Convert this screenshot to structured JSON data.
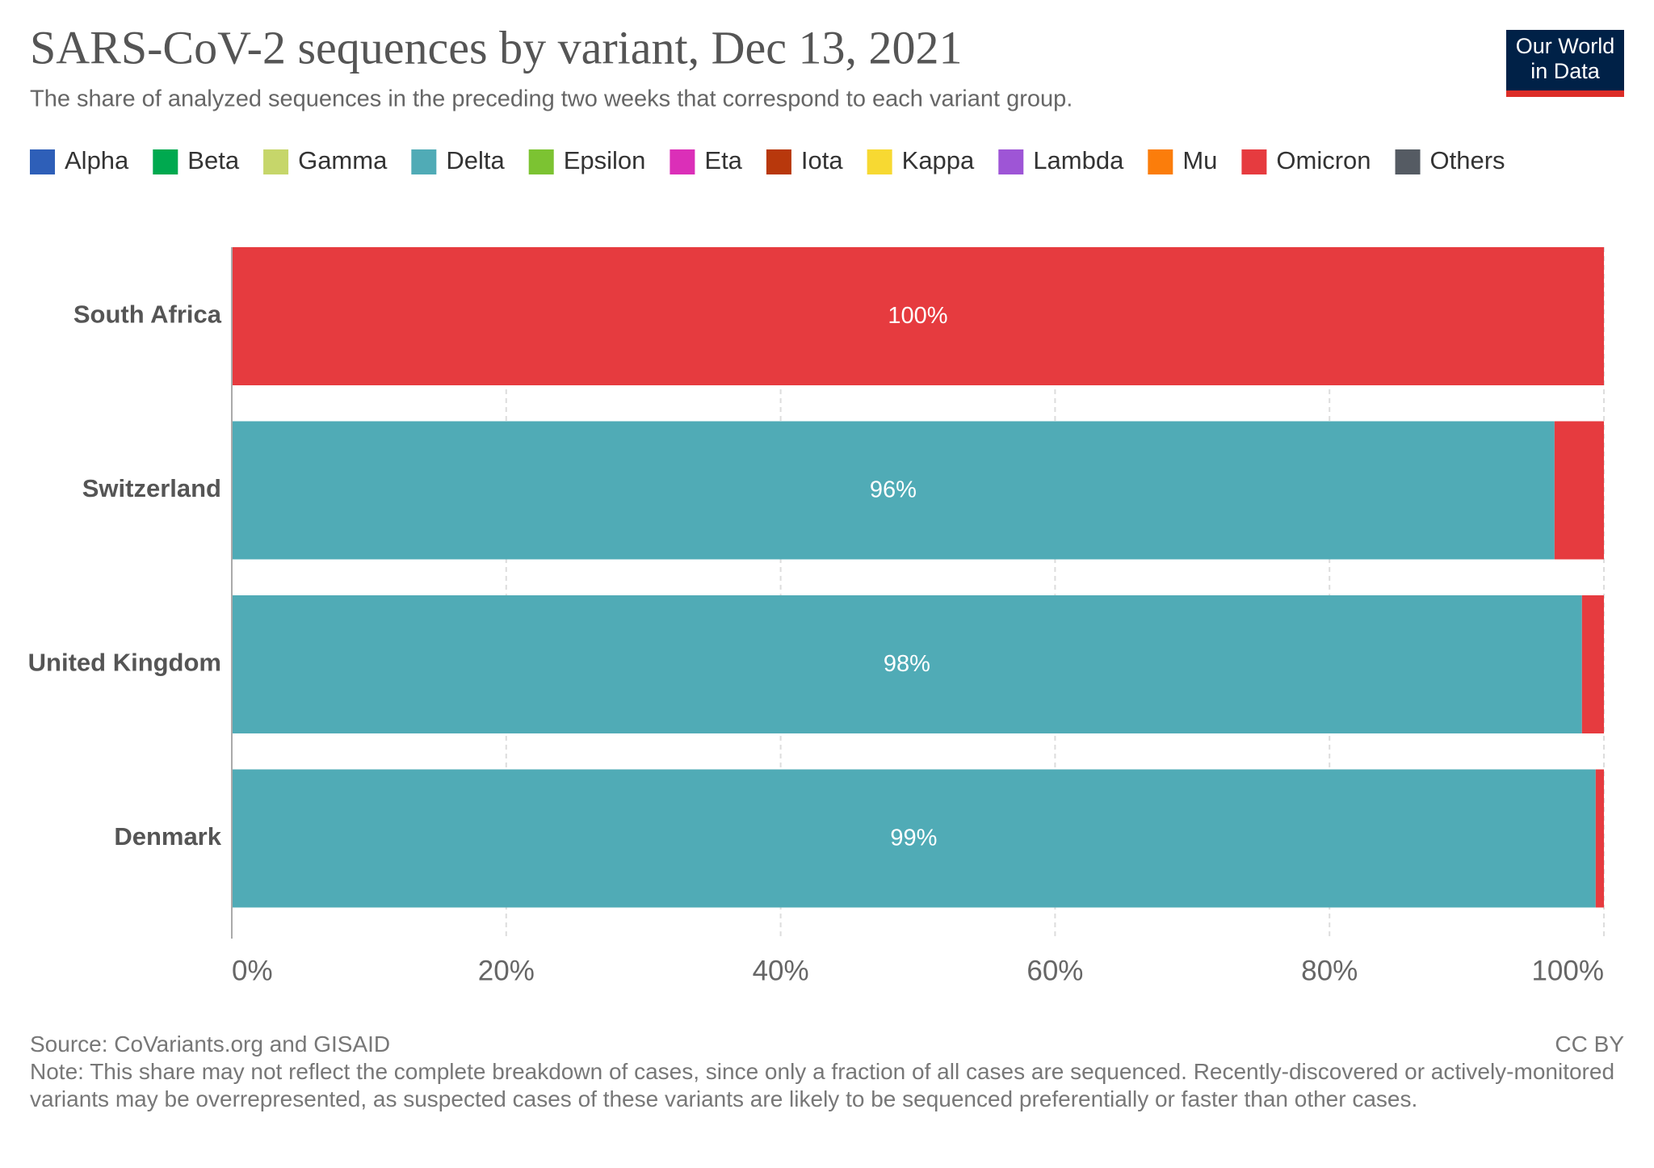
{
  "chart_data": {
    "type": "stacked_bar_horizontal",
    "title": "SARS-CoV-2 sequences by variant, Dec 13, 2021",
    "subtitle": "The share of analyzed sequences in the preceding two weeks that correspond to each variant group.",
    "logo": [
      "Our World",
      "in Data"
    ],
    "source": "Source: CoVariants.org and GISAID",
    "license": "CC BY",
    "note": "Note: This share may not reflect the complete breakdown of cases, since only a fraction of all cases are sequenced. Recently-discovered or actively-monitored variants may be overrepresented, as suspected cases of these variants are likely to be sequenced preferentially or faster than other cases.",
    "categories": [
      "South Africa",
      "Switzerland",
      "United Kingdom",
      "Denmark"
    ],
    "series": [
      {
        "name": "Alpha",
        "color": "#2e5fb8",
        "values": [
          0,
          0,
          0,
          0
        ]
      },
      {
        "name": "Beta",
        "color": "#00a94f",
        "values": [
          0,
          0,
          0,
          0
        ]
      },
      {
        "name": "Gamma",
        "color": "#c6d66a",
        "values": [
          0,
          0,
          0,
          0
        ]
      },
      {
        "name": "Delta",
        "color": "#50abb6",
        "values": [
          0,
          96.4,
          98.4,
          99.4
        ],
        "value_labels": [
          null,
          "96%",
          "98%",
          "99%"
        ]
      },
      {
        "name": "Epsilon",
        "color": "#7cc332",
        "values": [
          0,
          0,
          0,
          0
        ]
      },
      {
        "name": "Eta",
        "color": "#db2fb8",
        "values": [
          0,
          0,
          0,
          0
        ]
      },
      {
        "name": "Iota",
        "color": "#b8380c",
        "values": [
          0,
          0,
          0,
          0
        ]
      },
      {
        "name": "Kappa",
        "color": "#f7d932",
        "values": [
          0,
          0,
          0,
          0
        ]
      },
      {
        "name": "Lambda",
        "color": "#9e55d6",
        "values": [
          0,
          0,
          0,
          0
        ]
      },
      {
        "name": "Mu",
        "color": "#fb7d0b",
        "values": [
          0,
          0,
          0,
          0
        ]
      },
      {
        "name": "Omicron",
        "color": "#e63b3f",
        "values": [
          100,
          3.6,
          1.6,
          0.6
        ],
        "value_labels": [
          "100%",
          null,
          null,
          null
        ]
      },
      {
        "name": "Others",
        "color": "#555b63",
        "values": [
          0,
          0,
          0,
          0
        ]
      }
    ],
    "xlim": [
      0,
      100
    ],
    "xticks": [
      {
        "value": 0,
        "label": "0%"
      },
      {
        "value": 20,
        "label": "20%"
      },
      {
        "value": 40,
        "label": "40%"
      },
      {
        "value": 60,
        "label": "60%"
      },
      {
        "value": 80,
        "label": "80%"
      },
      {
        "value": 100,
        "label": "100%"
      }
    ],
    "grid": true,
    "legend": "top"
  }
}
